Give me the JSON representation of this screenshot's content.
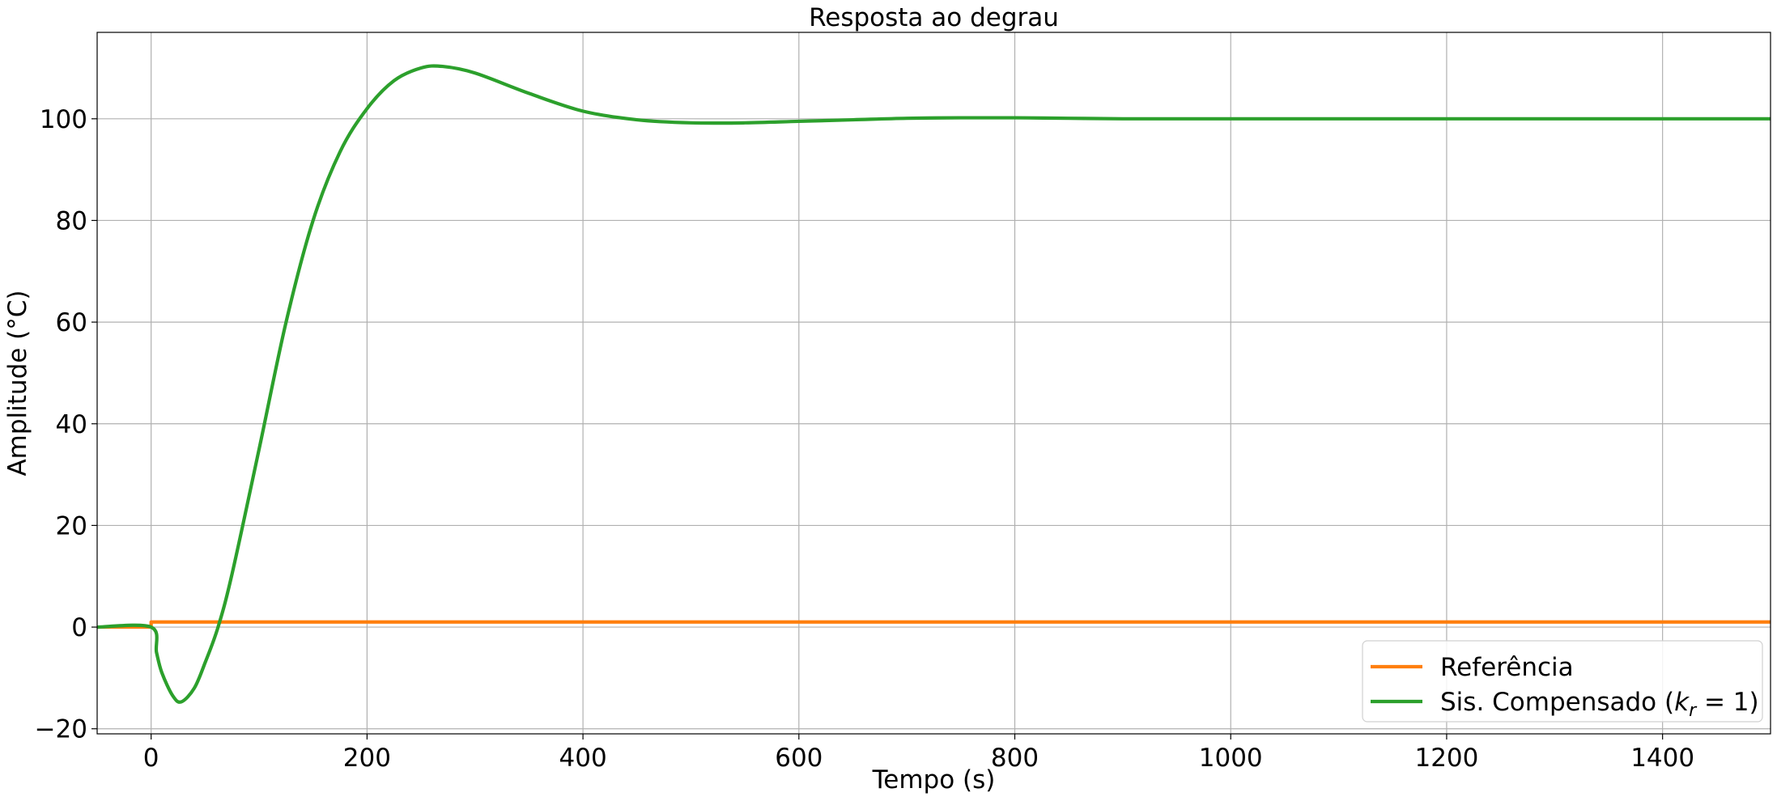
{
  "chart_data": {
    "type": "line",
    "title": "Resposta ao degrau",
    "xlabel": "Tempo (s)",
    "ylabel": "Amplitude (°C)",
    "xlim": [
      -50,
      1500
    ],
    "ylim": [
      -21,
      117
    ],
    "xticks": [
      0,
      200,
      400,
      600,
      800,
      1000,
      1200,
      1400
    ],
    "yticks": [
      -20,
      0,
      20,
      40,
      60,
      80,
      100
    ],
    "grid": true,
    "legend_position": "lower-right",
    "series": [
      {
        "name": "Referência",
        "color": "#ff7f0e",
        "x": [
          -50,
          -0.01,
          0,
          1500
        ],
        "y": [
          0,
          0,
          1,
          1
        ]
      },
      {
        "name": "Sis. Compensado (k_r = 1)",
        "legend": {
          "prefix": "Sis. Compensado (",
          "k": "k",
          "sub": "r",
          "suffix": " = 1)"
        },
        "color": "#2ca02c",
        "x": [
          -50,
          0,
          5,
          10,
          20,
          28,
          40,
          50,
          62,
          75,
          100,
          125,
          150,
          175,
          200,
          225,
          250,
          270,
          300,
          350,
          400,
          450,
          500,
          550,
          600,
          650,
          700,
          750,
          800,
          850,
          900,
          1000,
          1200,
          1500
        ],
        "y": [
          0,
          0,
          -5,
          -9,
          -13.5,
          -14.7,
          -12,
          -7,
          0,
          10.5,
          35,
          60,
          80,
          93.5,
          102,
          107.5,
          110,
          110.3,
          109,
          105,
          101.5,
          99.8,
          99.2,
          99.2,
          99.5,
          99.8,
          100.1,
          100.2,
          100.2,
          100.1,
          100,
          100,
          100,
          100
        ]
      }
    ]
  }
}
